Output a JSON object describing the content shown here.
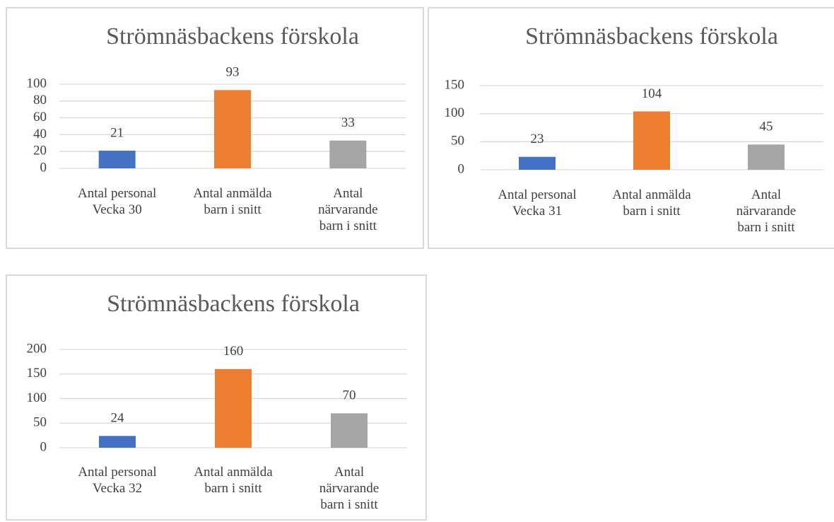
{
  "chart_data": [
    {
      "type": "bar",
      "title": "Strömnäsbackens förskola",
      "categories": [
        "Antal personal\nVecka 30",
        "Antal anmälda\nbarn i snitt",
        "Antal\nnärvarande\nbarn i snitt"
      ],
      "values": [
        21,
        93,
        33
      ],
      "colors": [
        "#4472c4",
        "#ed7d31",
        "#a5a5a5"
      ],
      "ylim": [
        0,
        100
      ],
      "yticks": [
        0,
        20,
        40,
        60,
        80,
        100
      ],
      "grid": true
    },
    {
      "type": "bar",
      "title": "Strömnäsbackens förskola",
      "categories": [
        "Antal personal\nVecka 31",
        "Antal anmälda\nbarn i snitt",
        "Antal\nnärvarande\nbarn i snitt"
      ],
      "values": [
        23,
        104,
        45
      ],
      "colors": [
        "#4472c4",
        "#ed7d31",
        "#a5a5a5"
      ],
      "ylim": [
        0,
        150
      ],
      "yticks": [
        0,
        50,
        100,
        150
      ],
      "grid": true
    },
    {
      "type": "bar",
      "title": "Strömnäsbackens förskola",
      "categories": [
        "Antal personal\nVecka 32",
        "Antal anmälda\nbarn i snitt",
        "Antal\nnärvarande\nbarn i snitt"
      ],
      "values": [
        24,
        160,
        70
      ],
      "colors": [
        "#4472c4",
        "#ed7d31",
        "#a5a5a5"
      ],
      "ylim": [
        0,
        200
      ],
      "yticks": [
        0,
        50,
        100,
        150,
        200
      ],
      "grid": true
    }
  ]
}
